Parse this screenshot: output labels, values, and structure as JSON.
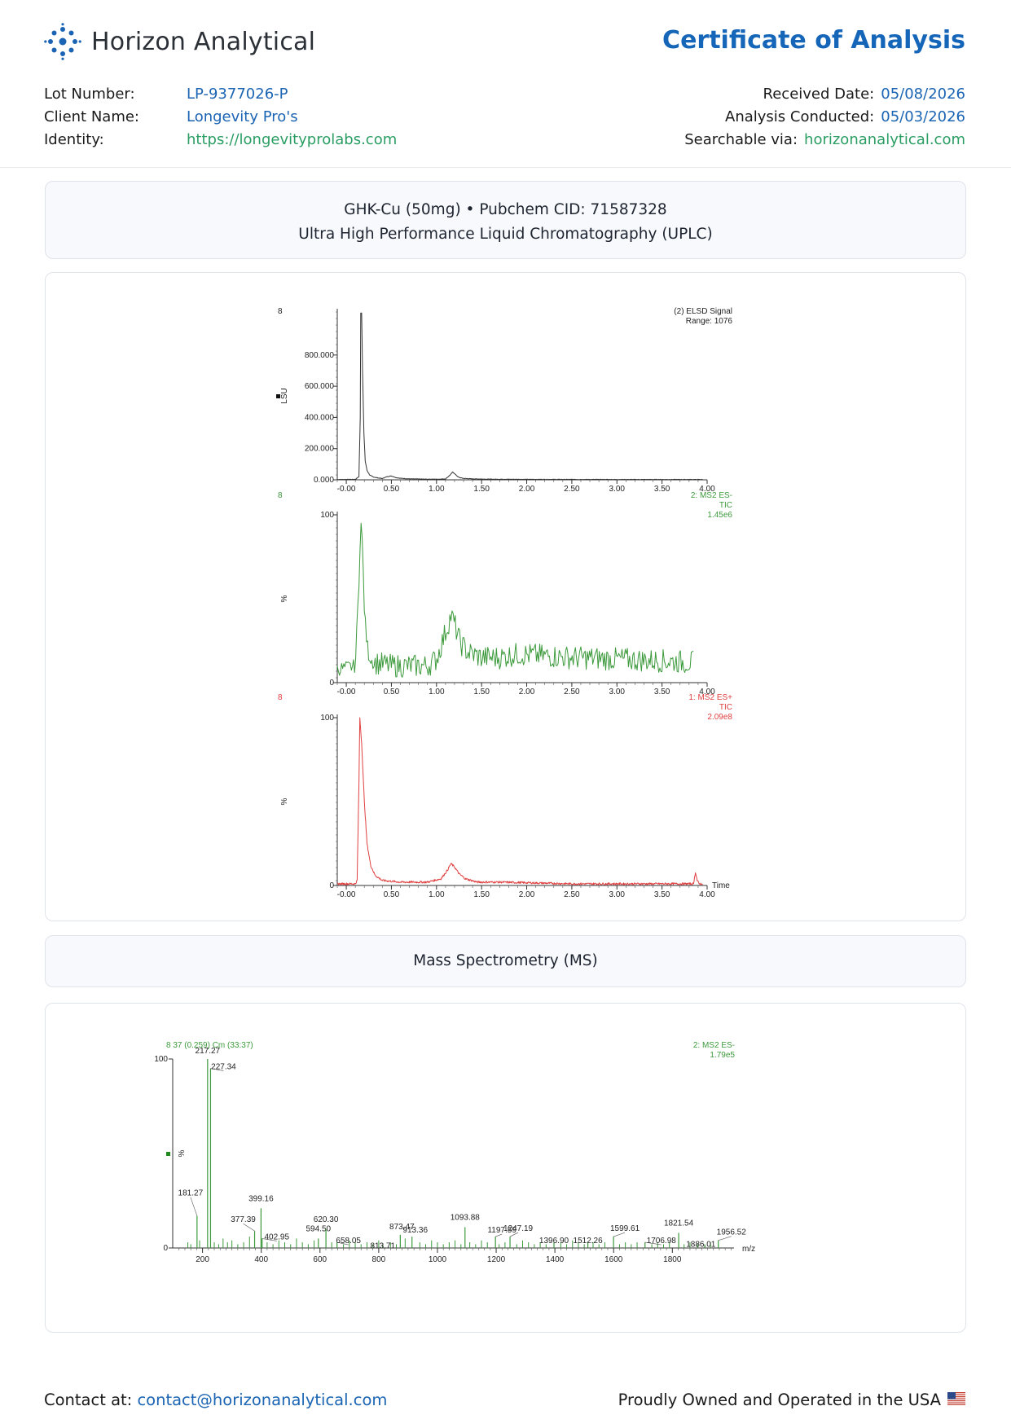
{
  "header": {
    "brand": "Horizon Analytical",
    "doc_title": "Certificate of Analysis",
    "lot_label": "Lot Number:",
    "lot_value": "LP-9377026-P",
    "client_label": "Client Name:",
    "client_value": "Longevity Pro's",
    "identity_label": "Identity:",
    "identity_value": "https://longevityprolabs.com",
    "received_label": "Received Date:",
    "received_value": "05/08/2026",
    "conducted_label": "Analysis Conducted:",
    "conducted_value": "05/03/2026",
    "search_label": "Searchable via:",
    "search_value": "horizonanalytical.com"
  },
  "colors": {
    "brand_blue": "#1565b8",
    "link_green": "#2a9d63",
    "elsd_trace": "#333333",
    "ms_es_minus": "#3c9a3c",
    "ms_es_plus": "#e04040"
  },
  "uplc_section": {
    "compound": "GHK-Cu (50mg) • Pubchem CID: 71587328",
    "method": "Ultra High Performance Liquid Chromatography (UPLC)"
  },
  "ms_section": {
    "title": "Mass Spectrometry (MS)"
  },
  "footer": {
    "contact_label": "Contact at:",
    "contact_email": "contact@horizonanalytical.com",
    "made_in": "Proudly Owned and Operated in the USA"
  },
  "chart_data": [
    {
      "type": "line",
      "corner_label": "8",
      "legend_line1": "(2) ELSD Signal",
      "legend_line2": "Range: 1076",
      "ylabel": "LSU",
      "x_ticks": [
        "-0.00",
        "0.50",
        "1.00",
        "1.50",
        "2.00",
        "2.50",
        "3.00",
        "3.50",
        "4.00"
      ],
      "y_ticks": [
        "0.000",
        "200.000",
        "400.000",
        "600.000",
        "800.000"
      ],
      "y_tick_values": [
        0,
        200,
        400,
        600,
        800
      ],
      "xlim": [
        -0.1,
        4.0
      ],
      "ylim": [
        0,
        1076
      ],
      "x": [
        -0.1,
        0.1,
        0.14,
        0.155,
        0.16,
        0.17,
        0.18,
        0.195,
        0.21,
        0.23,
        0.26,
        0.3,
        0.35,
        0.4,
        0.45,
        0.5,
        0.55,
        0.6,
        0.7,
        0.8,
        0.9,
        1.0,
        1.1,
        1.15,
        1.18,
        1.2,
        1.22,
        1.25,
        1.3,
        1.4,
        1.6,
        2.0,
        3.0,
        4.0
      ],
      "y": [
        2,
        3,
        20,
        400,
        1070,
        1070,
        700,
        300,
        120,
        60,
        30,
        18,
        12,
        8,
        20,
        25,
        14,
        10,
        6,
        5,
        4,
        4,
        6,
        30,
        50,
        40,
        28,
        15,
        9,
        6,
        4,
        3,
        2,
        2
      ]
    },
    {
      "type": "line",
      "corner_label": "8",
      "legend_line1": "2: MS2 ES-",
      "legend_line2": "TIC",
      "legend_line3": "1.45e6",
      "ylabel": "%",
      "x_ticks": [
        "-0.00",
        "0.50",
        "1.00",
        "1.50",
        "2.00",
        "2.50",
        "3.00",
        "3.50",
        "4.00"
      ],
      "y_ticks": [
        "0",
        "100"
      ],
      "y_tick_values": [
        0,
        100
      ],
      "xlim": [
        -0.1,
        4.0
      ],
      "ylim": [
        0,
        100
      ],
      "profile_x": [
        -0.1,
        0.1,
        0.14,
        0.16,
        0.18,
        0.2,
        0.22,
        0.25,
        0.3,
        0.5,
        0.9,
        1.0,
        1.1,
        1.16,
        1.2,
        1.26,
        1.35,
        1.5,
        1.7,
        1.9,
        2.2,
        2.5,
        3.0,
        3.5,
        3.85
      ],
      "profile_y": [
        8,
        10,
        60,
        98,
        80,
        45,
        28,
        16,
        12,
        10,
        10,
        14,
        30,
        40,
        35,
        24,
        18,
        15,
        15,
        17,
        16,
        15,
        14,
        13,
        12
      ],
      "noise_amplitude": 5
    },
    {
      "type": "line",
      "corner_label": "8",
      "legend_line1": "1: MS2 ES+",
      "legend_line2": "TIC",
      "legend_line3": "2.09e8",
      "ylabel": "%",
      "xlabel": "Time",
      "x_ticks": [
        "-0.00",
        "0.50",
        "1.00",
        "1.50",
        "2.00",
        "2.50",
        "3.00",
        "3.50",
        "4.00"
      ],
      "y_ticks": [
        "0",
        "100"
      ],
      "y_tick_values": [
        0,
        100
      ],
      "xlim": [
        -0.1,
        4.0
      ],
      "ylim": [
        0,
        100
      ],
      "x": [
        -0.1,
        0.1,
        0.12,
        0.14,
        0.15,
        0.17,
        0.2,
        0.23,
        0.27,
        0.32,
        0.4,
        0.6,
        0.9,
        1.05,
        1.12,
        1.16,
        1.2,
        1.25,
        1.32,
        1.45,
        1.7,
        2.5,
        3.5,
        3.85,
        3.87,
        3.89,
        3.91,
        3.93
      ],
      "y": [
        1,
        1,
        3,
        60,
        100,
        85,
        50,
        25,
        12,
        6,
        3,
        2,
        2,
        4,
        9,
        13,
        11,
        7,
        4,
        2,
        2,
        1,
        1,
        1,
        8,
        3,
        1,
        1
      ]
    },
    {
      "type": "bar",
      "header_label": "8 37 (0.259) Cm (33:37)",
      "legend_line1": "2: MS2 ES-",
      "legend_line2": "1.79e5",
      "ylabel": "%",
      "xlabel": "m/z",
      "x_ticks": [
        "200",
        "400",
        "600",
        "800",
        "1000",
        "1200",
        "1400",
        "1600",
        "1800"
      ],
      "x_tick_values": [
        200,
        400,
        600,
        800,
        1000,
        1200,
        1400,
        1600,
        1800
      ],
      "y_ticks": [
        "0",
        "100"
      ],
      "y_tick_values": [
        0,
        100
      ],
      "xlim": [
        104,
        2010
      ],
      "ylim": [
        0,
        100
      ],
      "peaks": [
        {
          "mz": 181.27,
          "label": "181.27",
          "intensity": 17
        },
        {
          "mz": 217.27,
          "label": "217.27",
          "intensity": 100
        },
        {
          "mz": 227.34,
          "label": "227.34",
          "intensity": 95
        },
        {
          "mz": 377.39,
          "label": "377.39",
          "intensity": 9
        },
        {
          "mz": 399.16,
          "label": "399.16",
          "intensity": 21
        },
        {
          "mz": 402.95,
          "label": "402.95",
          "intensity": 5
        },
        {
          "mz": 594.5,
          "label": "594.50",
          "intensity": 5
        },
        {
          "mz": 620.3,
          "label": "620.30",
          "intensity": 10
        },
        {
          "mz": 658.05,
          "label": "658.05",
          "intensity": 3
        },
        {
          "mz": 813.71,
          "label": "813.71",
          "intensity": 2
        },
        {
          "mz": 873.47,
          "label": "873.47",
          "intensity": 7
        },
        {
          "mz": 913.36,
          "label": "913.36",
          "intensity": 6
        },
        {
          "mz": 1093.88,
          "label": "1093.88",
          "intensity": 11
        },
        {
          "mz": 1197.59,
          "label": "1197.59",
          "intensity": 6
        },
        {
          "mz": 1247.19,
          "label": "1247.19",
          "intensity": 6
        },
        {
          "mz": 1396.9,
          "label": "1396.90",
          "intensity": 3
        },
        {
          "mz": 1512.26,
          "label": "1512.26",
          "intensity": 3
        },
        {
          "mz": 1599.61,
          "label": "1599.61",
          "intensity": 6
        },
        {
          "mz": 1706.98,
          "label": "1706.98",
          "intensity": 3
        },
        {
          "mz": 1821.54,
          "label": "1821.54",
          "intensity": 8
        },
        {
          "mz": 1886.01,
          "label": "1886.01",
          "intensity": 2
        },
        {
          "mz": 1956.52,
          "label": "1956.52",
          "intensity": 4
        }
      ],
      "minor_peaks_mz": [
        150,
        160,
        190,
        240,
        255,
        270,
        285,
        300,
        320,
        340,
        360,
        420,
        440,
        460,
        480,
        500,
        520,
        540,
        560,
        580,
        640,
        680,
        700,
        720,
        740,
        760,
        780,
        800,
        840,
        860,
        890,
        940,
        960,
        980,
        1000,
        1020,
        1040,
        1060,
        1080,
        1110,
        1130,
        1150,
        1170,
        1210,
        1230,
        1270,
        1290,
        1310,
        1330,
        1350,
        1370,
        1420,
        1440,
        1460,
        1480,
        1500,
        1530,
        1550,
        1570,
        1620,
        1640,
        1660,
        1680,
        1730,
        1750,
        1770,
        1790,
        1840,
        1860,
        1910,
        1930
      ],
      "minor_peaks_intensity": [
        3,
        2,
        4,
        3,
        2,
        5,
        3,
        4,
        2,
        3,
        6,
        3,
        2,
        4,
        3,
        2,
        5,
        3,
        2,
        4,
        3,
        2,
        4,
        3,
        2,
        3,
        2,
        4,
        3,
        2,
        5,
        3,
        2,
        4,
        3,
        2,
        3,
        4,
        2,
        3,
        2,
        4,
        3,
        2,
        3,
        2,
        4,
        3,
        2,
        3,
        2,
        3,
        2,
        4,
        3,
        2,
        3,
        2,
        3,
        2,
        3,
        2,
        3,
        2,
        3,
        2,
        3,
        2,
        3,
        2,
        3
      ]
    }
  ]
}
